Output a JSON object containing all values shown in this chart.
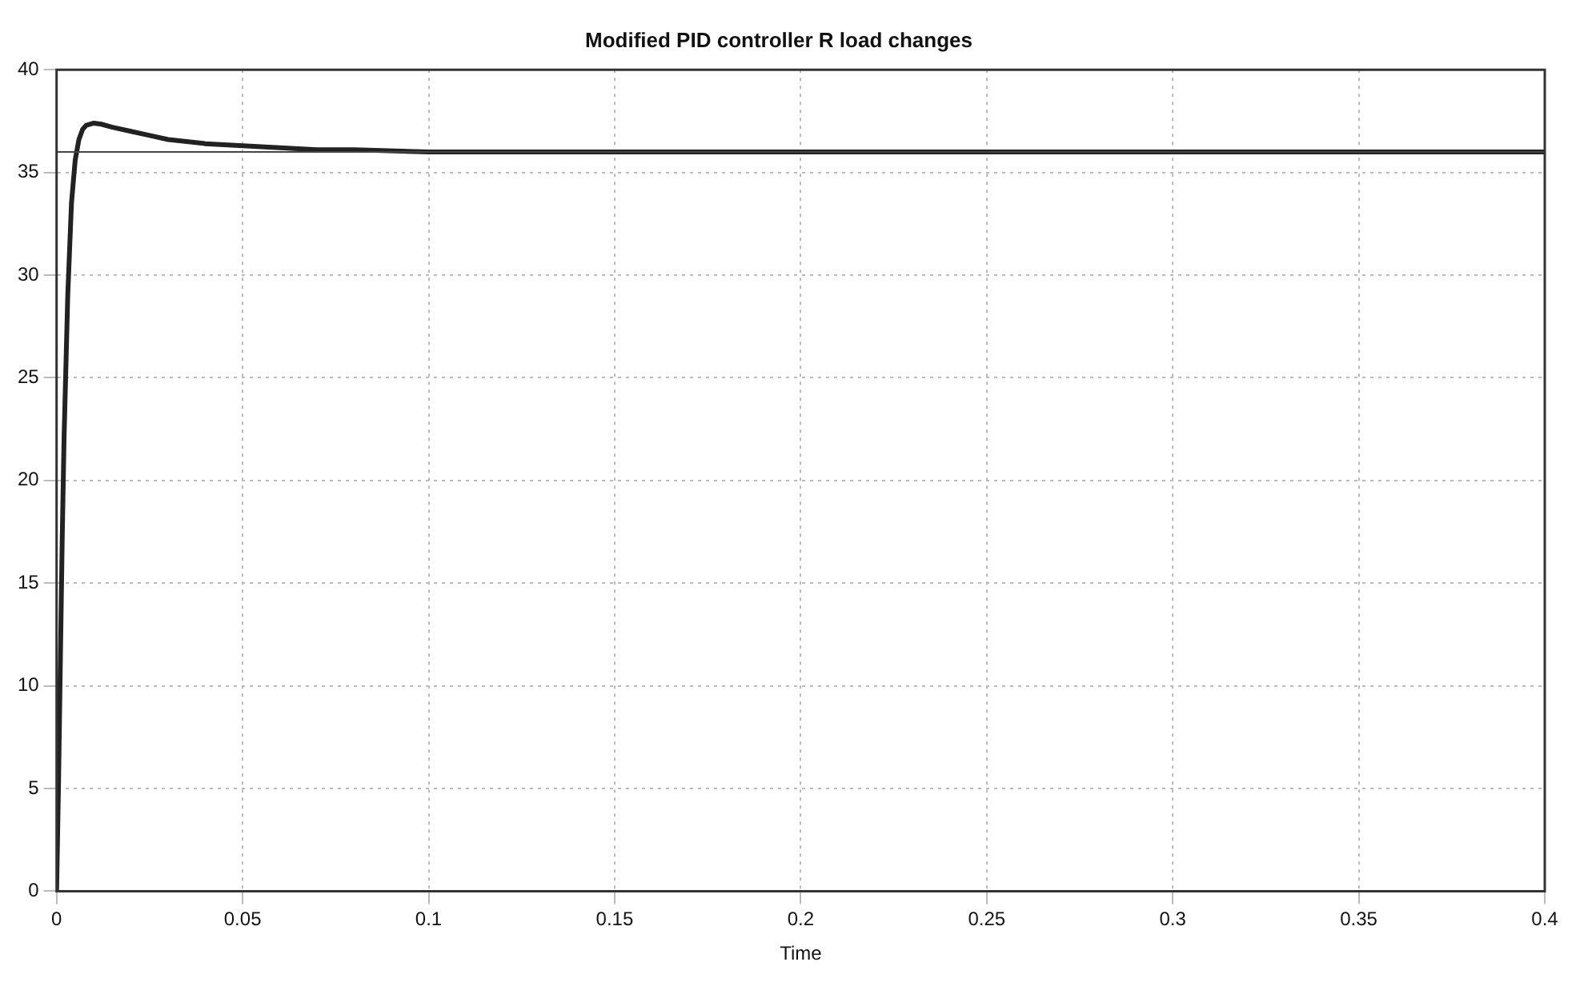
{
  "chart_data": {
    "type": "line",
    "title": "Modified PID controller R load changes",
    "xlabel": "Time",
    "x": [
      0,
      0.0005,
      0.001,
      0.0015,
      0.002,
      0.003,
      0.004,
      0.005,
      0.006,
      0.007,
      0.008,
      0.01,
      0.012,
      0.015,
      0.02,
      0.025,
      0.03,
      0.04,
      0.05,
      0.06,
      0.07,
      0.08,
      0.1,
      0.12,
      0.15,
      0.2,
      0.25,
      0.3,
      0.35,
      0.4
    ],
    "series": [
      {
        "color": "#222222",
        "values": [
          0,
          5,
          11,
          17,
          22,
          29,
          33.5,
          35.6,
          36.6,
          37.1,
          37.3,
          37.4,
          37.35,
          37.2,
          37.0,
          36.8,
          36.6,
          36.4,
          36.3,
          36.2,
          36.1,
          36.1,
          36.0,
          36.0,
          36.0,
          36.0,
          36.0,
          36.0,
          36.0,
          36.0
        ]
      }
    ],
    "ref_lines": [
      {
        "axis": "y",
        "value": 36,
        "color": "#444444"
      }
    ],
    "xlim": [
      0,
      0.4
    ],
    "xticks": [
      0,
      0.05,
      0.1,
      0.15,
      0.2,
      0.25,
      0.3,
      0.35,
      0.4
    ],
    "ylim": [
      0,
      40
    ],
    "yticks": [
      0,
      5,
      10,
      15,
      20,
      25,
      30,
      35,
      40
    ],
    "grid": true,
    "legend": false,
    "marker": "none",
    "line_style": "solid"
  }
}
